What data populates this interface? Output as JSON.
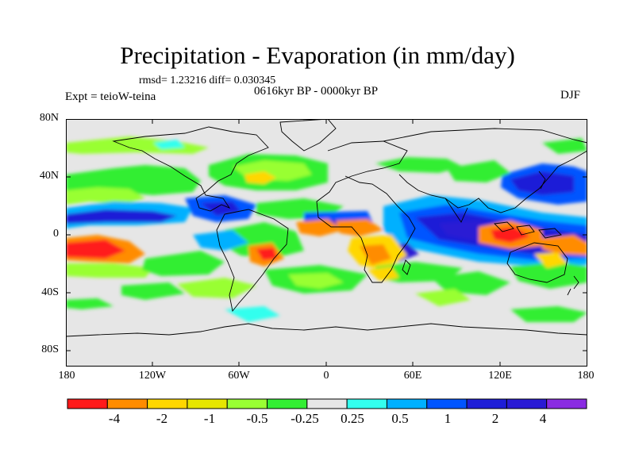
{
  "title": "Precipitation - Evaporation (in mm/day)",
  "stats": "rmsd= 1.23216 diff= 0.030345",
  "period": "0616kyr BP - 0000kyr BP",
  "experiment": "Expt = teioW-teina",
  "season": "DJF",
  "lat_labels": [
    "80N",
    "40N",
    "0",
    "40S",
    "80S"
  ],
  "lon_labels": [
    "180",
    "120W",
    "60W",
    "0",
    "60E",
    "120E",
    "180"
  ],
  "colorbar": {
    "colors": [
      "#ff1a1a",
      "#ff8c00",
      "#ffd700",
      "#e6e600",
      "#99ff33",
      "#33ee33",
      "#e6e6e6",
      "#33ffee",
      "#00b0ff",
      "#0055ff",
      "#1e1ed7",
      "#2a1bd4",
      "#8a2be2"
    ],
    "labels": [
      "-4",
      "-2",
      "-1",
      "-0.5",
      "-0.25",
      "0.25",
      "0.5",
      "1",
      "2",
      "4"
    ]
  },
  "palette": {
    "background": "#e6e6e6",
    "strong_neg": "#ff1a1a",
    "neg2": "#ff8c00",
    "neg1": "#ffd700",
    "neg05": "#99ff33",
    "neg025": "#33ee33",
    "pos025": "#33ffee",
    "pos05": "#00b0ff",
    "pos1": "#0055ff",
    "pos2": "#1e1ed7",
    "pos4": "#8a2be2"
  }
}
